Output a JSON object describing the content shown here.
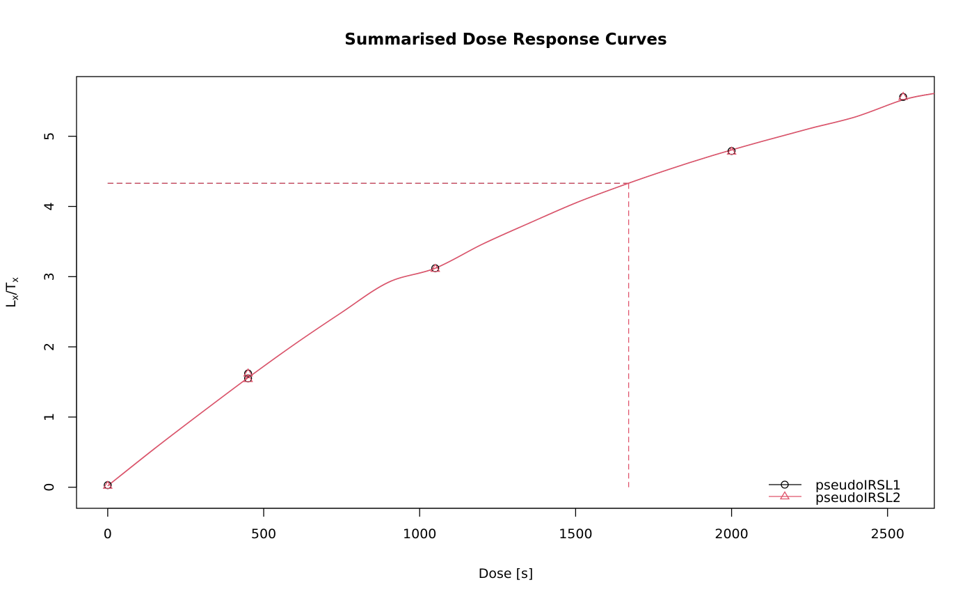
{
  "chart_data": {
    "type": "scatter",
    "title": "Summarised Dose Response Curves",
    "xlabel": "Dose [s]",
    "ylabel": {
      "base_L": "L",
      "sub_L": "x",
      "slash": "/",
      "base_T": "T",
      "sub_T": "x"
    },
    "xlim": [
      -100,
      2650
    ],
    "ylim": [
      -0.3,
      5.85
    ],
    "xticks": [
      0,
      500,
      1000,
      1500,
      2000,
      2500
    ],
    "yticks": [
      0,
      1,
      2,
      3,
      4,
      5
    ],
    "grid": false,
    "legend_position": "bottom-right",
    "series": [
      {
        "name": "pseudoIRSL1",
        "color": "#000000",
        "marker": "circle",
        "x": [
          0,
          450,
          450,
          1050,
          2000,
          2550
        ],
        "y": [
          0.03,
          1.62,
          1.55,
          3.12,
          4.79,
          5.56
        ]
      },
      {
        "name": "pseudoIRSL2",
        "color": "#DF536B",
        "marker": "triangle",
        "x": [
          0,
          450,
          450,
          1050,
          2000,
          2550
        ],
        "y": [
          0.02,
          1.62,
          1.54,
          3.11,
          4.78,
          5.56
        ]
      }
    ],
    "fit_curve": {
      "color": "#DF536B",
      "x": [
        0,
        150,
        300,
        450,
        600,
        750,
        900,
        1050,
        1200,
        1350,
        1500,
        1650,
        1800,
        1950,
        2100,
        2250,
        2400,
        2550,
        2650
      ],
      "y": [
        0.02,
        0.55,
        1.06,
        1.56,
        2.04,
        2.49,
        2.92,
        3.12,
        3.46,
        3.76,
        4.05,
        4.3,
        4.53,
        4.74,
        4.93,
        5.11,
        5.28,
        5.52,
        5.61
      ]
    },
    "annotation": {
      "color": "#DF536B",
      "style": "dashed",
      "lx_tx_value": 4.33,
      "dose_value": 1670
    }
  }
}
